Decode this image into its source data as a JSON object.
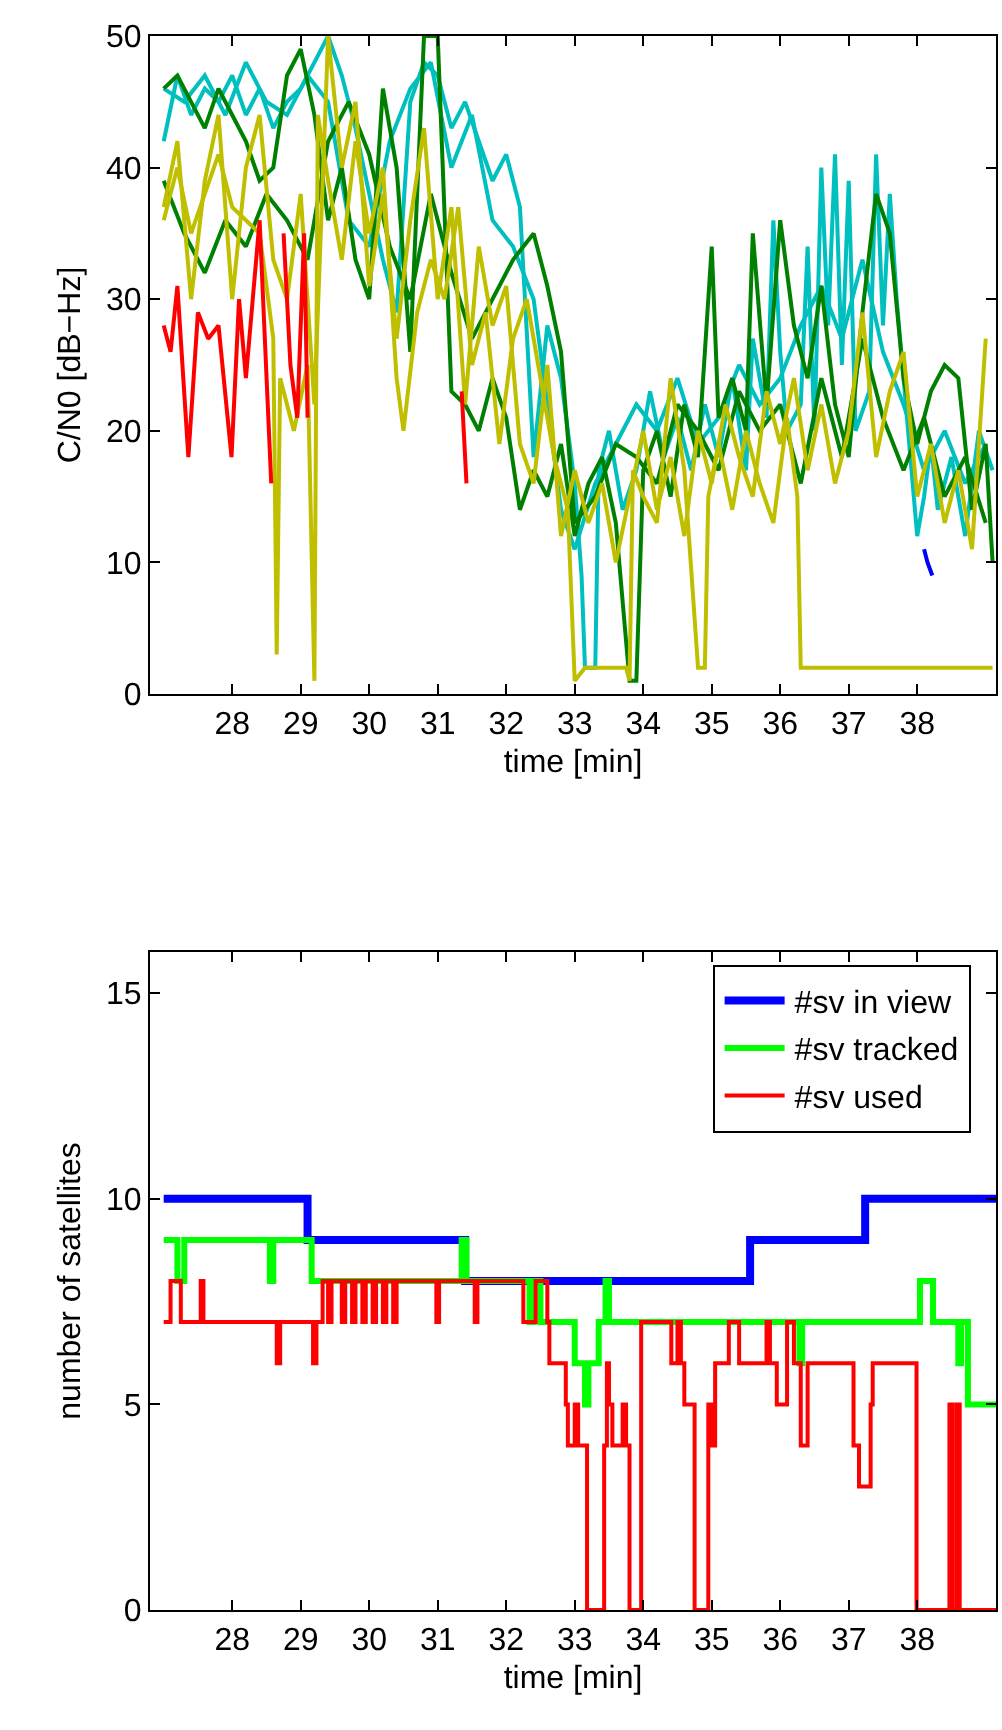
{
  "chart_data": [
    {
      "type": "line",
      "xlabel": "time [min]",
      "ylabel": "C/N0 [dB−Hz]",
      "xlim": [
        26.8,
        39.15
      ],
      "xticks": [
        28,
        29,
        30,
        31,
        32,
        33,
        34,
        35,
        36,
        37,
        38
      ],
      "ylim": [
        0,
        50
      ],
      "yticks": [
        0,
        10,
        20,
        30,
        40,
        50
      ],
      "series": [
        {
          "color": "#00bfbf",
          "x": [
            27.0,
            27.2,
            27.4,
            27.6,
            27.8,
            28.0,
            28.2,
            28.4,
            28.6,
            28.8,
            29.0,
            29.2,
            29.4,
            29.6,
            29.8,
            30.0,
            30.2,
            30.4,
            30.6,
            30.8,
            31.0,
            31.2,
            31.4,
            31.6,
            31.8,
            32.0,
            32.2,
            32.4,
            32.6,
            32.8,
            33.0,
            33.1,
            33.15,
            33.3,
            33.35,
            33.5,
            33.7,
            33.9,
            34.1,
            34.3,
            34.5,
            34.7,
            34.9,
            35.1,
            35.3,
            35.5,
            35.6,
            35.8,
            35.9,
            36.0,
            36.1,
            36.3,
            36.4,
            36.5,
            36.6,
            36.7,
            36.8,
            36.9,
            37.0,
            37.1,
            37.3,
            37.4,
            37.5,
            37.6,
            37.7,
            37.8,
            38.0,
            38.1,
            38.2,
            38.3,
            38.5,
            38.7,
            38.9,
            39.1
          ],
          "values": [
            42,
            47,
            44,
            46,
            45,
            47,
            44,
            46,
            43,
            45,
            46,
            48,
            50,
            47,
            43,
            38,
            33,
            29,
            45,
            48,
            47,
            43,
            45,
            42,
            39,
            41,
            37,
            18,
            28,
            24,
            16,
            9,
            2,
            2,
            17,
            20,
            14,
            17,
            23,
            18,
            21,
            17,
            22,
            18,
            24,
            17,
            27,
            21,
            36,
            26,
            20,
            22,
            34,
            20,
            40,
            28,
            41,
            25,
            39,
            20,
            23,
            41,
            28,
            38,
            30,
            24,
            12,
            15,
            19,
            14,
            18,
            12,
            20,
            17
          ]
        },
        {
          "color": "#00bfbf",
          "x": [
            27.0,
            27.3,
            27.6,
            27.9,
            28.2,
            28.5,
            28.8,
            29.1,
            29.4,
            29.7,
            30.0,
            30.3,
            30.6,
            30.9,
            31.2,
            31.5,
            31.8,
            32.1,
            32.4,
            32.6,
            32.8,
            33.0,
            33.3,
            33.6,
            33.9,
            34.2,
            34.5,
            34.8,
            35.1,
            35.4,
            35.7,
            36.0,
            36.3,
            36.6,
            36.9,
            37.2,
            37.5,
            37.8,
            38.1,
            38.4,
            38.7,
            39.0
          ],
          "values": [
            46,
            45,
            47,
            44,
            48,
            45,
            44,
            47,
            45,
            36,
            34,
            42,
            46,
            48,
            40,
            44,
            36,
            34,
            30,
            22,
            14,
            11,
            16,
            19,
            22,
            20,
            24,
            19,
            21,
            25,
            22,
            24,
            28,
            31,
            27,
            33,
            26,
            22,
            17,
            20,
            16,
            19
          ]
        },
        {
          "color": "#008000",
          "x": [
            27.0,
            27.2,
            27.4,
            27.6,
            27.8,
            28.0,
            28.2,
            28.4,
            28.6,
            28.8,
            29.0,
            29.2,
            29.4,
            29.6,
            29.8,
            30.0,
            30.2,
            30.4,
            30.6,
            30.8,
            31.0,
            31.2,
            31.4,
            31.6,
            31.8,
            32.0,
            32.2,
            32.4,
            32.6,
            32.8,
            33.0,
            33.2,
            33.4,
            33.6,
            33.8,
            33.9,
            34.0,
            34.2,
            34.4,
            34.6,
            34.8,
            35.0,
            35.1,
            35.3,
            35.5,
            35.6,
            35.8,
            36.0,
            36.2,
            36.4,
            36.6,
            36.8,
            37.0,
            37.2,
            37.4,
            37.6,
            37.8,
            38.0,
            38.2,
            38.4,
            38.6,
            38.8,
            39.0,
            39.1
          ],
          "values": [
            46,
            47,
            45,
            43,
            46,
            44,
            42,
            39,
            40,
            47,
            49,
            44,
            36,
            40,
            33,
            30,
            46,
            40,
            26,
            50,
            50,
            23,
            22,
            20,
            24,
            21,
            14,
            17,
            15,
            19,
            12,
            16,
            18,
            13,
            1,
            1,
            17,
            20,
            15,
            22,
            18,
            34,
            21,
            24,
            20,
            35,
            22,
            36,
            28,
            24,
            31,
            22,
            18,
            29,
            38,
            35,
            24,
            19,
            23,
            25,
            24,
            14,
            19,
            10
          ]
        },
        {
          "color": "#008000",
          "x": [
            27.0,
            27.3,
            27.6,
            27.9,
            28.2,
            28.5,
            28.8,
            29.1,
            29.4,
            29.7,
            30.0,
            30.3,
            30.6,
            30.9,
            31.2,
            31.5,
            31.8,
            32.1,
            32.4,
            32.6,
            32.8,
            33.0,
            33.3,
            33.6,
            33.9,
            34.2,
            34.5,
            34.8,
            35.1,
            35.4,
            35.7,
            36.0,
            36.3,
            36.6,
            36.9,
            37.2,
            37.5,
            37.8,
            38.1,
            38.4,
            38.7,
            39.0
          ],
          "values": [
            39,
            35,
            32,
            36,
            34,
            38,
            36,
            33,
            42,
            45,
            41,
            34,
            30,
            38,
            32,
            27,
            30,
            33,
            35,
            31,
            26,
            13,
            15,
            19,
            18,
            16,
            22,
            20,
            17,
            23,
            20,
            22,
            16,
            24,
            18,
            27,
            21,
            17,
            21,
            15,
            18,
            13
          ]
        },
        {
          "color": "#bfbf00",
          "x": [
            27.0,
            27.2,
            27.4,
            27.6,
            27.8,
            28.0,
            28.2,
            28.4,
            28.6,
            28.65,
            28.7,
            28.9,
            29.1,
            29.2,
            29.25,
            29.4,
            29.6,
            29.8,
            30.0,
            30.2,
            30.4,
            30.5,
            30.7,
            30.9,
            31.1,
            31.3,
            31.5,
            31.7,
            31.9,
            32.1,
            32.3,
            32.5,
            32.7,
            32.9,
            33.0,
            33.15,
            33.75,
            33.8,
            33.85,
            34.0,
            34.2,
            34.4,
            34.6,
            34.8,
            34.9,
            34.95,
            35.1,
            35.3,
            35.5,
            35.7,
            35.9,
            36.1,
            36.25,
            36.3,
            39.1
          ],
          "values": [
            36,
            40,
            35,
            38,
            41,
            37,
            36,
            35,
            27,
            3,
            24,
            20,
            25,
            1,
            44,
            39,
            33,
            42,
            35,
            40,
            24,
            20,
            29,
            33,
            30,
            37,
            25,
            29,
            19,
            27,
            30,
            24,
            18,
            14,
            1,
            2,
            2,
            1,
            17,
            15,
            13,
            24,
            17,
            2,
            2,
            15,
            19,
            14,
            20,
            16,
            13,
            21,
            15,
            2,
            2
          ]
        },
        {
          "color": "#bfbf00",
          "x": [
            27.0,
            27.2,
            27.4,
            27.6,
            27.8,
            28.0,
            28.2,
            28.4,
            28.6,
            28.8,
            29.0,
            29.2,
            29.4,
            29.6,
            29.8,
            30.0,
            30.2,
            30.4,
            30.6,
            30.8,
            31.0,
            31.2,
            31.4,
            31.6,
            31.8,
            32.0,
            32.2,
            32.4,
            32.6,
            32.8,
            33.0,
            33.2,
            33.4,
            33.6,
            33.8,
            34.0,
            34.2,
            34.4,
            34.6,
            34.8,
            35.0,
            35.2,
            35.4,
            35.6,
            35.8,
            36.0,
            36.2,
            36.4,
            36.6,
            36.8,
            37.0,
            37.2,
            37.4,
            37.6,
            37.8,
            38.0,
            38.2,
            38.4,
            38.6,
            38.8,
            39.0
          ],
          "values": [
            37,
            42,
            30,
            39,
            44,
            30,
            40,
            44,
            33,
            30,
            38,
            22,
            50,
            40,
            45,
            31,
            38,
            27,
            36,
            43,
            30,
            37,
            22,
            34,
            28,
            31,
            19,
            16,
            25,
            12,
            17,
            13,
            16,
            10,
            15,
            20,
            14,
            18,
            12,
            20,
            16,
            22,
            18,
            15,
            23,
            19,
            24,
            17,
            22,
            16,
            20,
            29,
            18,
            23,
            26,
            15,
            19,
            13,
            17,
            11,
            27
          ]
        },
        {
          "color": "#ff0000",
          "x": [
            27.0,
            27.1,
            27.2,
            27.36,
            27.5,
            27.65,
            27.8,
            27.99,
            28.1,
            28.2,
            28.3,
            28.4,
            28.57,
            28.6,
            28.75,
            28.85,
            28.95,
            29.05,
            29.1,
            29.2,
            31.35,
            31.42
          ],
          "values": [
            28,
            26,
            31,
            18,
            29,
            27,
            28,
            18,
            30,
            24,
            30,
            36,
            16,
            null,
            35,
            25,
            21,
            35,
            21,
            null,
            23,
            16
          ]
        },
        {
          "color": "#0000ff",
          "x": [
            38.1,
            38.15,
            38.22
          ],
          "values": [
            11,
            10,
            9
          ]
        }
      ]
    },
    {
      "type": "step",
      "xlabel": "time [min]",
      "ylabel": "number of satellites",
      "xlim": [
        26.8,
        39.15
      ],
      "xticks": [
        28,
        29,
        30,
        31,
        32,
        33,
        34,
        35,
        36,
        37,
        38
      ],
      "ylim": [
        0,
        16
      ],
      "yticks": [
        0,
        5,
        10,
        15
      ],
      "legend": "top right",
      "series": [
        {
          "name": "#sv in view",
          "color": "#0000ff",
          "x": [
            27.0,
            29.1,
            31.4,
            35.56,
            37.24,
            39.15
          ],
          "values": [
            10,
            9,
            8,
            9,
            10,
            10
          ]
        },
        {
          "name": "#sv tracked",
          "color": "#00ff00",
          "x": [
            27.0,
            27.2,
            27.3,
            28.55,
            28.6,
            29.16,
            31.35,
            31.42,
            32.34,
            32.4,
            32.5,
            33.0,
            33.15,
            33.2,
            33.35,
            33.45,
            33.5,
            36.28,
            36.32,
            38.04,
            38.23,
            38.6,
            38.64,
            38.74,
            39.15
          ],
          "values": [
            9,
            8,
            9,
            8,
            9,
            8,
            9,
            8,
            7,
            8,
            7,
            6,
            5,
            6,
            7,
            8,
            7,
            6,
            7,
            8,
            7,
            6,
            7,
            5,
            5
          ]
        },
        {
          "name": "#sv used",
          "color": "#ff0000",
          "x": [
            27.0,
            27.1,
            27.25,
            27.54,
            27.58,
            28.65,
            28.7,
            29.18,
            29.23,
            29.32,
            29.4,
            29.45,
            29.6,
            29.65,
            29.75,
            29.8,
            29.9,
            29.95,
            30.05,
            30.1,
            30.2,
            30.25,
            30.35,
            30.4,
            30.98,
            31.02,
            31.54,
            31.58,
            32.25,
            32.43,
            32.6,
            32.63,
            32.87,
            32.9,
            33.0,
            33.05,
            33.18,
            33.43,
            33.47,
            33.5,
            33.55,
            33.7,
            33.75,
            33.8,
            33.97,
            34.41,
            34.5,
            34.55,
            34.6,
            34.75,
            34.95,
            35.0,
            35.05,
            35.1,
            35.25,
            35.4,
            35.8,
            35.85,
            35.95,
            36.1,
            36.2,
            36.3,
            36.4,
            37.07,
            37.15,
            37.32,
            37.35,
            37.9,
            37.99,
            38.47,
            38.52,
            38.58,
            38.62,
            39.15
          ],
          "values": [
            7,
            8,
            7,
            8,
            7,
            6,
            7,
            6,
            7,
            8,
            7,
            8,
            7,
            8,
            7,
            8,
            7,
            8,
            7,
            8,
            7,
            8,
            7,
            8,
            7,
            8,
            7,
            8,
            7,
            8,
            7,
            6,
            5,
            4,
            5,
            4,
            0,
            4,
            6,
            5,
            4,
            5,
            4,
            0,
            7,
            6,
            7,
            6,
            5,
            0,
            5,
            4,
            6,
            6,
            7,
            6,
            7,
            6,
            5,
            7,
            6,
            4,
            6,
            4,
            3,
            5,
            6,
            6,
            0,
            5,
            0,
            5,
            0,
            0
          ]
        }
      ]
    }
  ]
}
